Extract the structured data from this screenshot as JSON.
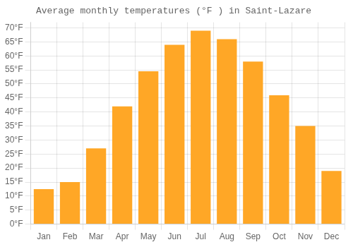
{
  "chart_data": {
    "type": "bar",
    "title": "Average monthly temperatures (°F ) in Saint-Lazare",
    "categories": [
      "Jan",
      "Feb",
      "Mar",
      "Apr",
      "May",
      "Jun",
      "Jul",
      "Aug",
      "Sep",
      "Oct",
      "Nov",
      "Dec"
    ],
    "values": [
      12.5,
      15.0,
      27.0,
      42.0,
      54.5,
      64.0,
      69.0,
      66.0,
      58.0,
      46.0,
      35.0,
      19.0
    ],
    "color": "#FFA726",
    "ylim": [
      0,
      72
    ],
    "yticks": [
      {
        "value": 0,
        "label": "0°F"
      },
      {
        "value": 5,
        "label": "5°F"
      },
      {
        "value": 10,
        "label": "10°F"
      },
      {
        "value": 15,
        "label": "15°F"
      },
      {
        "value": 20,
        "label": "20°F"
      },
      {
        "value": 25,
        "label": "25°F"
      },
      {
        "value": 30,
        "label": "30°F"
      },
      {
        "value": 35,
        "label": "35°F"
      },
      {
        "value": 40,
        "label": "40°F"
      },
      {
        "value": 45,
        "label": "45°F"
      },
      {
        "value": 50,
        "label": "50°F"
      },
      {
        "value": 55,
        "label": "55°F"
      },
      {
        "value": 60,
        "label": "60°F"
      },
      {
        "value": 65,
        "label": "65°F"
      },
      {
        "value": 70,
        "label": "70°F"
      }
    ],
    "grid": true
  }
}
